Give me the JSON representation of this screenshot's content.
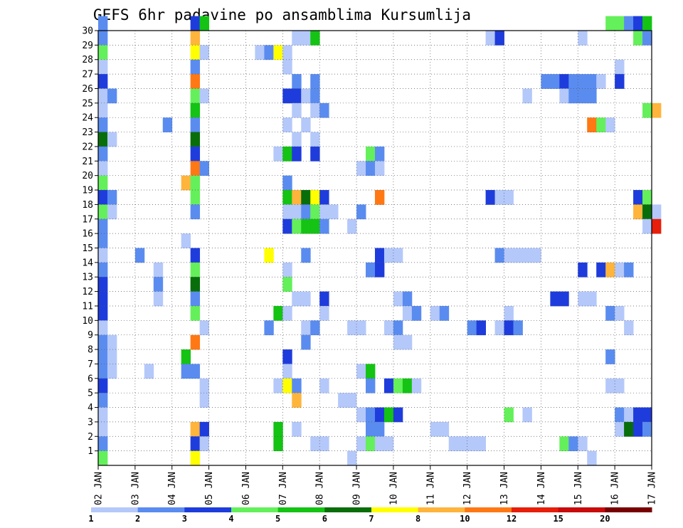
{
  "chart_data": {
    "type": "heatmap",
    "title": "GEFS 6hr padavine po ansamblima Kursumlija",
    "xlabel": "",
    "ylabel": "",
    "x_ticks": [
      "02 JAN",
      "03 JAN",
      "04 JAN",
      "05 JAN",
      "06 JAN",
      "07 JAN",
      "08 JAN",
      "09 JAN",
      "10 JAN",
      "11 JAN",
      "12 JAN",
      "13 JAN",
      "14 JAN",
      "15 JAN",
      "16 JAN",
      "17 JAN"
    ],
    "y_ticks": [
      1,
      2,
      3,
      4,
      5,
      6,
      7,
      8,
      9,
      10,
      11,
      12,
      13,
      14,
      15,
      16,
      17,
      18,
      19,
      20,
      21,
      22,
      23,
      24,
      25,
      26,
      27,
      28,
      29,
      30
    ],
    "time_steps_per_day": 4,
    "xlim": [
      0,
      60
    ],
    "ylim": [
      0,
      30
    ],
    "grid": true,
    "legend": {
      "placement": "bottom",
      "labels": [
        "1",
        "2",
        "3",
        "4",
        "5",
        "6",
        "7",
        "8",
        "10",
        "12",
        "15",
        "20"
      ],
      "colors": [
        "#b4c8fa",
        "#5a8cf0",
        "#1e3cdc",
        "#64f05a",
        "#14c314",
        "#086e0a",
        "#ffff00",
        "#ffb43c",
        "#ff7814",
        "#e61e0a",
        "#c80a0a",
        "#780000"
      ]
    },
    "cells": [
      [
        0,
        30,
        1
      ],
      [
        10,
        30,
        2
      ],
      [
        11,
        30,
        4
      ],
      [
        55,
        30,
        3
      ],
      [
        56,
        30,
        3
      ],
      [
        57,
        30,
        1
      ],
      [
        58,
        30,
        2
      ],
      [
        59,
        30,
        4
      ],
      [
        0,
        29,
        1
      ],
      [
        10,
        29,
        7
      ],
      [
        21,
        29,
        0
      ],
      [
        22,
        29,
        0
      ],
      [
        23,
        29,
        4
      ],
      [
        42,
        29,
        0
      ],
      [
        43,
        29,
        2
      ],
      [
        52,
        29,
        0
      ],
      [
        58,
        29,
        3
      ],
      [
        59,
        29,
        1
      ],
      [
        0,
        28,
        3
      ],
      [
        10,
        28,
        6
      ],
      [
        11,
        28,
        0
      ],
      [
        17,
        28,
        0
      ],
      [
        18,
        28,
        1
      ],
      [
        19,
        28,
        6
      ],
      [
        20,
        28,
        0
      ],
      [
        0,
        27,
        0
      ],
      [
        10,
        27,
        1
      ],
      [
        20,
        27,
        0
      ],
      [
        56,
        27,
        0
      ],
      [
        0,
        26,
        2
      ],
      [
        10,
        26,
        8
      ],
      [
        21,
        26,
        1
      ],
      [
        23,
        26,
        1
      ],
      [
        48,
        26,
        1
      ],
      [
        49,
        26,
        1
      ],
      [
        50,
        26,
        2
      ],
      [
        51,
        26,
        1
      ],
      [
        52,
        26,
        1
      ],
      [
        53,
        26,
        1
      ],
      [
        54,
        26,
        0
      ],
      [
        56,
        26,
        2
      ],
      [
        0,
        25,
        0
      ],
      [
        1,
        25,
        1
      ],
      [
        10,
        25,
        3
      ],
      [
        11,
        25,
        0
      ],
      [
        20,
        25,
        2
      ],
      [
        21,
        25,
        2
      ],
      [
        22,
        25,
        0
      ],
      [
        23,
        25,
        1
      ],
      [
        46,
        25,
        0
      ],
      [
        50,
        25,
        0
      ],
      [
        51,
        25,
        1
      ],
      [
        52,
        25,
        1
      ],
      [
        53,
        25,
        1
      ],
      [
        0,
        24,
        0
      ],
      [
        10,
        24,
        4
      ],
      [
        21,
        24,
        0
      ],
      [
        23,
        24,
        0
      ],
      [
        24,
        24,
        1
      ],
      [
        59,
        24,
        3
      ],
      [
        60,
        24,
        7
      ],
      [
        0,
        23,
        1
      ],
      [
        7,
        23,
        1
      ],
      [
        10,
        23,
        1
      ],
      [
        20,
        23,
        0
      ],
      [
        22,
        23,
        0
      ],
      [
        53,
        23,
        8
      ],
      [
        54,
        23,
        3
      ],
      [
        55,
        23,
        0
      ],
      [
        0,
        22,
        5
      ],
      [
        1,
        22,
        0
      ],
      [
        10,
        22,
        5
      ],
      [
        21,
        22,
        0
      ],
      [
        23,
        22,
        0
      ],
      [
        0,
        21,
        1
      ],
      [
        10,
        21,
        2
      ],
      [
        19,
        21,
        0
      ],
      [
        20,
        21,
        4
      ],
      [
        21,
        21,
        2
      ],
      [
        23,
        21,
        2
      ],
      [
        29,
        21,
        3
      ],
      [
        30,
        21,
        1
      ],
      [
        0,
        20,
        0
      ],
      [
        10,
        20,
        8
      ],
      [
        11,
        20,
        1
      ],
      [
        28,
        20,
        0
      ],
      [
        29,
        20,
        1
      ],
      [
        30,
        20,
        0
      ],
      [
        0,
        19,
        3
      ],
      [
        9,
        19,
        7
      ],
      [
        10,
        19,
        3
      ],
      [
        20,
        19,
        1
      ],
      [
        0,
        18,
        2
      ],
      [
        1,
        18,
        1
      ],
      [
        10,
        18,
        3
      ],
      [
        20,
        18,
        4
      ],
      [
        21,
        18,
        7
      ],
      [
        22,
        18,
        5
      ],
      [
        23,
        18,
        6
      ],
      [
        24,
        18,
        2
      ],
      [
        30,
        18,
        8
      ],
      [
        42,
        18,
        2
      ],
      [
        43,
        18,
        0
      ],
      [
        44,
        18,
        0
      ],
      [
        58,
        18,
        2
      ],
      [
        59,
        18,
        3
      ],
      [
        0,
        17,
        3
      ],
      [
        1,
        17,
        0
      ],
      [
        10,
        17,
        1
      ],
      [
        20,
        17,
        0
      ],
      [
        21,
        17,
        0
      ],
      [
        22,
        17,
        1
      ],
      [
        23,
        17,
        3
      ],
      [
        24,
        17,
        0
      ],
      [
        25,
        17,
        0
      ],
      [
        28,
        17,
        1
      ],
      [
        58,
        17,
        7
      ],
      [
        59,
        17,
        5
      ],
      [
        60,
        17,
        0
      ],
      [
        0,
        16,
        1
      ],
      [
        20,
        16,
        2
      ],
      [
        21,
        16,
        3
      ],
      [
        22,
        16,
        4
      ],
      [
        23,
        16,
        4
      ],
      [
        24,
        16,
        1
      ],
      [
        27,
        16,
        0
      ],
      [
        59,
        16,
        0
      ],
      [
        60,
        16,
        9
      ],
      [
        0,
        15,
        1
      ],
      [
        9,
        15,
        0
      ],
      [
        0,
        14,
        0
      ],
      [
        4,
        14,
        1
      ],
      [
        10,
        14,
        2
      ],
      [
        18,
        14,
        6
      ],
      [
        22,
        14,
        1
      ],
      [
        30,
        14,
        2
      ],
      [
        31,
        14,
        0
      ],
      [
        32,
        14,
        0
      ],
      [
        43,
        14,
        1
      ],
      [
        44,
        14,
        0
      ],
      [
        45,
        14,
        0
      ],
      [
        46,
        14,
        0
      ],
      [
        47,
        14,
        0
      ],
      [
        0,
        13,
        1
      ],
      [
        6,
        13,
        0
      ],
      [
        10,
        13,
        3
      ],
      [
        20,
        13,
        0
      ],
      [
        29,
        13,
        1
      ],
      [
        30,
        13,
        2
      ],
      [
        52,
        13,
        2
      ],
      [
        54,
        13,
        2
      ],
      [
        55,
        13,
        7
      ],
      [
        56,
        13,
        0
      ],
      [
        57,
        13,
        1
      ],
      [
        0,
        12,
        2
      ],
      [
        6,
        12,
        1
      ],
      [
        10,
        12,
        5
      ],
      [
        20,
        12,
        3
      ],
      [
        0,
        11,
        2
      ],
      [
        6,
        11,
        0
      ],
      [
        10,
        11,
        1
      ],
      [
        21,
        11,
        0
      ],
      [
        22,
        11,
        0
      ],
      [
        24,
        11,
        2
      ],
      [
        32,
        11,
        0
      ],
      [
        33,
        11,
        1
      ],
      [
        49,
        11,
        2
      ],
      [
        50,
        11,
        2
      ],
      [
        52,
        11,
        0
      ],
      [
        53,
        11,
        0
      ],
      [
        0,
        10,
        2
      ],
      [
        10,
        10,
        3
      ],
      [
        19,
        10,
        4
      ],
      [
        20,
        10,
        0
      ],
      [
        24,
        10,
        0
      ],
      [
        33,
        10,
        0
      ],
      [
        34,
        10,
        1
      ],
      [
        36,
        10,
        0
      ],
      [
        37,
        10,
        1
      ],
      [
        44,
        10,
        0
      ],
      [
        55,
        10,
        1
      ],
      [
        56,
        10,
        0
      ],
      [
        0,
        9,
        0
      ],
      [
        11,
        9,
        0
      ],
      [
        18,
        9,
        1
      ],
      [
        22,
        9,
        0
      ],
      [
        23,
        9,
        1
      ],
      [
        27,
        9,
        0
      ],
      [
        28,
        9,
        0
      ],
      [
        31,
        9,
        0
      ],
      [
        32,
        9,
        1
      ],
      [
        40,
        9,
        1
      ],
      [
        41,
        9,
        2
      ],
      [
        43,
        9,
        0
      ],
      [
        44,
        9,
        2
      ],
      [
        45,
        9,
        1
      ],
      [
        57,
        9,
        0
      ],
      [
        0,
        8,
        1
      ],
      [
        1,
        8,
        0
      ],
      [
        10,
        8,
        8
      ],
      [
        22,
        8,
        1
      ],
      [
        32,
        8,
        0
      ],
      [
        33,
        8,
        0
      ],
      [
        0,
        7,
        1
      ],
      [
        1,
        7,
        0
      ],
      [
        9,
        7,
        4
      ],
      [
        20,
        7,
        2
      ],
      [
        55,
        7,
        1
      ],
      [
        0,
        6,
        1
      ],
      [
        1,
        6,
        0
      ],
      [
        5,
        6,
        0
      ],
      [
        9,
        6,
        1
      ],
      [
        10,
        6,
        1
      ],
      [
        20,
        6,
        0
      ],
      [
        28,
        6,
        0
      ],
      [
        29,
        6,
        4
      ],
      [
        0,
        5,
        2
      ],
      [
        11,
        5,
        0
      ],
      [
        19,
        5,
        0
      ],
      [
        20,
        5,
        6
      ],
      [
        21,
        5,
        1
      ],
      [
        24,
        5,
        0
      ],
      [
        29,
        5,
        1
      ],
      [
        31,
        5,
        2
      ],
      [
        32,
        5,
        3
      ],
      [
        33,
        5,
        4
      ],
      [
        34,
        5,
        0
      ],
      [
        55,
        5,
        0
      ],
      [
        56,
        5,
        0
      ],
      [
        0,
        4,
        1
      ],
      [
        11,
        4,
        0
      ],
      [
        21,
        4,
        7
      ],
      [
        26,
        4,
        0
      ],
      [
        27,
        4,
        0
      ],
      [
        0,
        3,
        0
      ],
      [
        28,
        3,
        0
      ],
      [
        29,
        3,
        1
      ],
      [
        30,
        3,
        2
      ],
      [
        31,
        3,
        4
      ],
      [
        32,
        3,
        2
      ],
      [
        44,
        3,
        3
      ],
      [
        46,
        3,
        0
      ],
      [
        56,
        3,
        1
      ],
      [
        57,
        3,
        0
      ],
      [
        58,
        3,
        2
      ],
      [
        59,
        3,
        2
      ],
      [
        0,
        2,
        0
      ],
      [
        10,
        2,
        7
      ],
      [
        11,
        2,
        2
      ],
      [
        19,
        2,
        4
      ],
      [
        21,
        2,
        0
      ],
      [
        29,
        2,
        1
      ],
      [
        30,
        2,
        1
      ],
      [
        36,
        2,
        0
      ],
      [
        37,
        2,
        0
      ],
      [
        56,
        2,
        0
      ],
      [
        57,
        2,
        5
      ],
      [
        58,
        2,
        2
      ],
      [
        59,
        2,
        1
      ],
      [
        0,
        1,
        1
      ],
      [
        10,
        1,
        2
      ],
      [
        11,
        1,
        0
      ],
      [
        19,
        1,
        4
      ],
      [
        23,
        1,
        0
      ],
      [
        24,
        1,
        0
      ],
      [
        28,
        1,
        0
      ],
      [
        29,
        1,
        3
      ],
      [
        30,
        1,
        0
      ],
      [
        31,
        1,
        0
      ],
      [
        38,
        1,
        0
      ],
      [
        39,
        1,
        0
      ],
      [
        40,
        1,
        0
      ],
      [
        41,
        1,
        0
      ],
      [
        50,
        1,
        3
      ],
      [
        51,
        1,
        1
      ],
      [
        52,
        1,
        0
      ],
      [
        0,
        0,
        3
      ],
      [
        10,
        0,
        6
      ],
      [
        27,
        0,
        0
      ],
      [
        53,
        0,
        0
      ]
    ]
  }
}
